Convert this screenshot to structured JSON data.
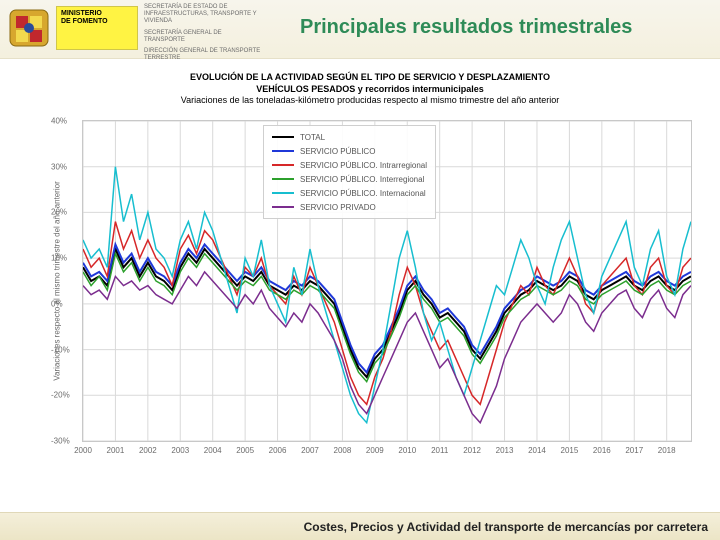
{
  "header": {
    "ministry_line1": "MINISTERIO",
    "ministry_line2": "DE FOMENTO",
    "dept1": "SECRETARÍA DE ESTADO DE INFRAESTRUCTURAS, TRANSPORTE Y VIVIENDA",
    "dept2": "SECRETARÍA GENERAL DE TRANSPORTE",
    "dept3": "DIRECCIÓN GENERAL DE TRANSPORTE TERRESTRE"
  },
  "slide_title": "Principales resultados trimestrales",
  "footer": "Costes, Precios y Actividad del transporte de mercancías por carretera",
  "chart": {
    "type": "line",
    "title1": "EVOLUCIÓN DE LA ACTIVIDAD SEGÚN EL TIPO DE SERVICIO Y DESPLAZAMIENTO",
    "title2": "VEHÍCULOS PESADOS y recorridos intermunicipales",
    "title3": "Variaciones de las toneladas-kilómetro producidas respecto al mismo trimestre del año anterior",
    "ylabel": "Variaciones respecto al mismo trimestre del año anterior",
    "ylim": [
      -30,
      40
    ],
    "ytick_step": 10,
    "grid_color": "#d9d9d9",
    "plot_bg": "#ffffff",
    "xlabels": [
      "2000",
      "2001",
      "2002",
      "2003",
      "2004",
      "2005",
      "2006",
      "2007",
      "2008",
      "2009",
      "2010",
      "2011",
      "2012",
      "2013",
      "2014",
      "2015",
      "2016",
      "2017",
      "2018"
    ],
    "n_points": 76,
    "legend": [
      {
        "label": "TOTAL",
        "color": "#000000",
        "width": 2
      },
      {
        "label": "SERVICIO PÚBLICO",
        "color": "#1f38d8",
        "width": 2
      },
      {
        "label": "SERVICIO PÚBLICO. Intrarregional",
        "color": "#d62728",
        "width": 1.5
      },
      {
        "label": "SERVICIO PÚBLICO. Interregional",
        "color": "#2ca02c",
        "width": 1.5
      },
      {
        "label": "SERVICIO PÚBLICO. Internacional",
        "color": "#17becf",
        "width": 1.5
      },
      {
        "label": "SERVICIO PRIVADO",
        "color": "#7b2d8e",
        "width": 1.5
      }
    ],
    "series": {
      "TOTAL": [
        8,
        5,
        6,
        4,
        12,
        8,
        10,
        6,
        9,
        6,
        5,
        3,
        8,
        11,
        9,
        12,
        10,
        8,
        6,
        4,
        6,
        5,
        7,
        4,
        3,
        2,
        4,
        3,
        5,
        4,
        2,
        0,
        -5,
        -10,
        -14,
        -16,
        -12,
        -10,
        -6,
        -2,
        3,
        5,
        2,
        0,
        -3,
        -2,
        -4,
        -6,
        -10,
        -12,
        -9,
        -6,
        -2,
        0,
        2,
        3,
        5,
        4,
        3,
        4,
        6,
        5,
        2,
        1,
        3,
        4,
        5,
        6,
        4,
        3,
        5,
        6,
        4,
        3,
        5,
        6
      ],
      "SERVICIO PÚBLICO": [
        9,
        6,
        7,
        5,
        13,
        9,
        11,
        7,
        10,
        7,
        6,
        4,
        9,
        12,
        10,
        13,
        11,
        9,
        7,
        5,
        7,
        6,
        8,
        5,
        4,
        3,
        5,
        4,
        6,
        5,
        3,
        1,
        -4,
        -9,
        -13,
        -15,
        -11,
        -9,
        -5,
        -1,
        4,
        6,
        3,
        1,
        -2,
        -1,
        -3,
        -5,
        -9,
        -11,
        -8,
        -5,
        -1,
        1,
        3,
        4,
        6,
        5,
        4,
        5,
        7,
        6,
        3,
        2,
        4,
        5,
        6,
        7,
        5,
        4,
        6,
        7,
        5,
        4,
        6,
        7
      ],
      "SERVICIO PÚBLICO. Intrarregional": [
        12,
        8,
        10,
        6,
        18,
        12,
        16,
        10,
        14,
        10,
        8,
        4,
        12,
        15,
        11,
        16,
        14,
        10,
        6,
        2,
        8,
        6,
        10,
        4,
        2,
        0,
        6,
        2,
        8,
        4,
        0,
        -4,
        -10,
        -16,
        -20,
        -22,
        -16,
        -12,
        -6,
        2,
        8,
        4,
        -2,
        -6,
        -10,
        -8,
        -12,
        -16,
        -20,
        -22,
        -16,
        -10,
        -4,
        0,
        4,
        2,
        8,
        4,
        2,
        6,
        10,
        6,
        0,
        -2,
        4,
        6,
        8,
        10,
        4,
        2,
        8,
        10,
        4,
        2,
        8,
        10
      ],
      "SERVICIO PÚBLICO. Interregional": [
        7,
        4,
        6,
        3,
        11,
        7,
        9,
        5,
        8,
        5,
        4,
        2,
        7,
        10,
        8,
        11,
        9,
        7,
        5,
        3,
        5,
        4,
        6,
        3,
        2,
        1,
        3,
        2,
        4,
        3,
        1,
        -1,
        -6,
        -11,
        -15,
        -17,
        -13,
        -11,
        -7,
        -3,
        2,
        4,
        1,
        -1,
        -4,
        -3,
        -5,
        -7,
        -11,
        -13,
        -10,
        -7,
        -3,
        -1,
        1,
        2,
        4,
        3,
        2,
        3,
        5,
        4,
        1,
        0,
        2,
        3,
        4,
        5,
        3,
        2,
        4,
        5,
        3,
        2,
        4,
        5
      ],
      "SERVICIO PÚBLICO. Internacional": [
        14,
        10,
        12,
        8,
        30,
        18,
        24,
        14,
        20,
        12,
        10,
        6,
        14,
        18,
        12,
        20,
        16,
        10,
        4,
        -2,
        10,
        6,
        14,
        4,
        0,
        -4,
        8,
        2,
        12,
        4,
        -2,
        -8,
        -14,
        -20,
        -24,
        -26,
        -18,
        -10,
        0,
        10,
        16,
        8,
        -2,
        -8,
        -4,
        -10,
        -16,
        -20,
        -14,
        -8,
        -2,
        4,
        2,
        8,
        14,
        10,
        4,
        0,
        8,
        14,
        18,
        10,
        2,
        -2,
        6,
        10,
        14,
        18,
        8,
        4,
        12,
        16,
        6,
        2,
        12,
        18
      ],
      "SERVICIO PRIVADO": [
        4,
        2,
        3,
        1,
        6,
        4,
        5,
        3,
        4,
        2,
        1,
        0,
        3,
        6,
        4,
        7,
        5,
        3,
        1,
        -1,
        2,
        0,
        3,
        -1,
        -3,
        -5,
        -2,
        -4,
        0,
        -2,
        -5,
        -8,
        -12,
        -18,
        -22,
        -24,
        -20,
        -16,
        -12,
        -8,
        -4,
        -2,
        -6,
        -10,
        -14,
        -12,
        -16,
        -20,
        -24,
        -26,
        -22,
        -18,
        -12,
        -8,
        -4,
        -2,
        0,
        -2,
        -4,
        -2,
        2,
        0,
        -4,
        -6,
        -2,
        0,
        2,
        3,
        -1,
        -3,
        1,
        3,
        -1,
        -3,
        2,
        4
      ]
    },
    "title_fontsize": 9,
    "label_fontsize": 8
  }
}
